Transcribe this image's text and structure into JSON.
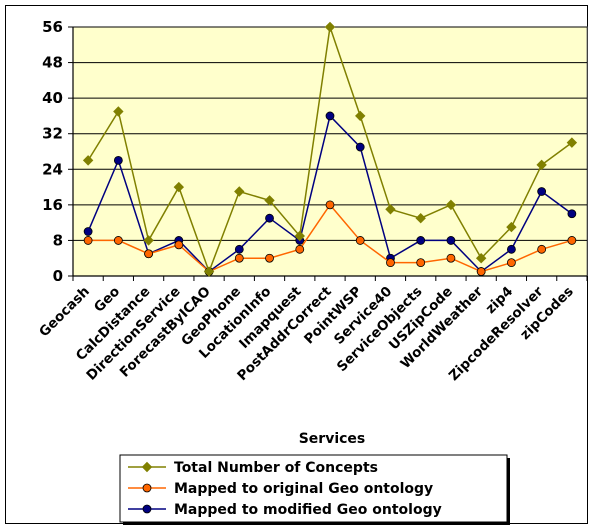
{
  "chart_data": {
    "type": "line",
    "title": "",
    "xlabel": "Services",
    "ylabel": "",
    "ylim": [
      0,
      56
    ],
    "yticks": [
      0,
      8,
      16,
      24,
      32,
      40,
      48,
      56
    ],
    "grid": true,
    "legend_position": "bottom",
    "plot_background": "#ffffcc",
    "categories": [
      "Geocash",
      "Geo",
      "CalcDistance",
      "DirectionService",
      "ForecastByICAO",
      "GeoPhone",
      "LocationInfo",
      "Imapquest",
      "PostAddrCorrect",
      "PointWSP",
      "Service40",
      "ServiceObjects",
      "USZipCode",
      "WorldWeather",
      "zip4",
      "ZipcodeResolver",
      "zipCodes"
    ],
    "series": [
      {
        "name": "Total Number of Concepts",
        "color": "#808000",
        "marker": "diamond",
        "values": [
          26,
          37,
          8,
          20,
          1,
          19,
          17,
          9,
          56,
          36,
          15,
          13,
          16,
          4,
          11,
          25,
          30
        ]
      },
      {
        "name": "Mapped to original Geo ontology",
        "color": "#ff6600",
        "marker": "circle",
        "values": [
          8,
          8,
          5,
          7,
          1,
          4,
          4,
          6,
          16,
          8,
          3,
          3,
          4,
          1,
          3,
          6,
          8
        ]
      },
      {
        "name": "Mapped to modified Geo ontology",
        "color": "#000080",
        "marker": "circle",
        "values": [
          10,
          26,
          5,
          8,
          1,
          6,
          13,
          8,
          36,
          29,
          4,
          8,
          8,
          1,
          6,
          19,
          14
        ]
      }
    ]
  }
}
